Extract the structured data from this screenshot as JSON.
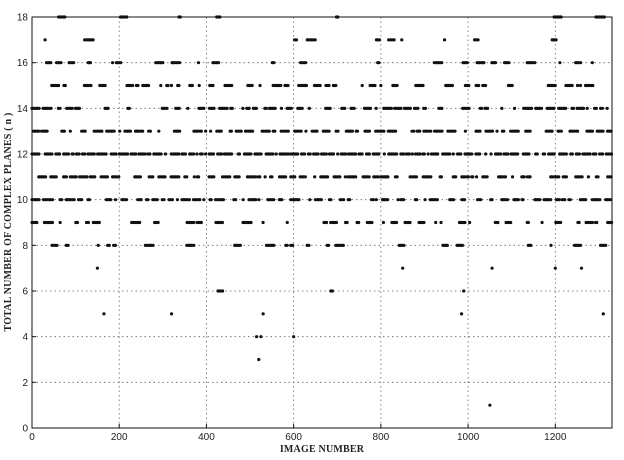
{
  "chart_data": {
    "type": "scatter",
    "title": "",
    "xlabel": "IMAGE NUMBER",
    "ylabel": "TOTAL NUMBER OF COMPLEX PLANES ( n )",
    "xlim": [
      0,
      1330
    ],
    "ylim": [
      0,
      18
    ],
    "xticks": [
      "0",
      "200",
      "400",
      "600",
      "800",
      "1000",
      "1200"
    ],
    "yticks": [
      "0",
      "2",
      "4",
      "6",
      "8",
      "10",
      "12",
      "14",
      "16",
      "18"
    ],
    "grid": true,
    "legend": "none",
    "marker_color": "#111111",
    "sparse_points": {
      "x": [
        1050,
        520,
        525,
        515,
        600,
        165,
        320,
        530,
        985,
        1310,
        30,
        140,
        150,
        850,
        1055,
        1200,
        1260,
        990
      ],
      "y": [
        1,
        3,
        4,
        4,
        4,
        5,
        5,
        5,
        5,
        5,
        17,
        17,
        7,
        7,
        7,
        7,
        7,
        6
      ]
    }
  }
}
